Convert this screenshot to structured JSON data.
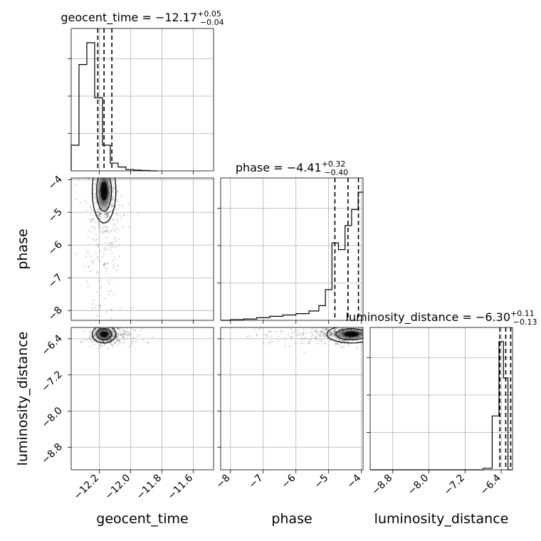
{
  "chart_data": {
    "type": "corner",
    "parameters": [
      {
        "name": "geocent_time",
        "axis_range": [
          -12.38,
          -11.47
        ],
        "ticks": [
          -12.2,
          -12.0,
          -11.8,
          -11.6
        ],
        "tick_labels": [
          "−12.2",
          "−12.0",
          "−11.8",
          "−11.6"
        ]
      },
      {
        "name": "phase",
        "axis_range": [
          -8.3,
          -3.95
        ],
        "ticks": [
          -8,
          -7,
          -6,
          -5,
          -4
        ],
        "tick_labels": [
          "−8",
          "−7",
          "−6",
          "−5",
          "−4"
        ]
      },
      {
        "name": "luminosity_distance",
        "axis_range": [
          -9.3,
          -6.15
        ],
        "ticks": [
          -8.8,
          -8.0,
          -7.2,
          -6.4
        ],
        "tick_labels": [
          "−8.8",
          "−8.0",
          "−7.2",
          "−6.4"
        ]
      }
    ],
    "titles": [
      {
        "parameter": "geocent_time",
        "median": "−12.17",
        "plus": "+0.05",
        "minus": "−0.04"
      },
      {
        "parameter": "phase",
        "median": "−4.41",
        "plus": "+0.32",
        "minus": "−0.40"
      },
      {
        "parameter": "luminosity_distance",
        "median": "−6.30",
        "plus": "+0.11",
        "minus": "−0.13"
      }
    ],
    "histograms": [
      {
        "parameter": "geocent_time",
        "bin_edges": [
          -12.38,
          -12.33,
          -12.28,
          -12.23,
          -12.18,
          -12.13,
          -12.08,
          -12.03,
          -11.98,
          -11.93,
          -11.88,
          -11.83
        ],
        "counts": [
          0.2,
          0.83,
          1.0,
          0.57,
          0.2,
          0.06,
          0.03,
          0.01,
          0.006,
          0.003,
          0.0
        ]
      },
      {
        "parameter": "phase",
        "bin_edges": [
          -8.3,
          -8.0,
          -7.6,
          -7.2,
          -6.8,
          -6.4,
          -6.0,
          -5.6,
          -5.3,
          -5.1,
          -4.9,
          -4.7,
          -4.5,
          -4.3,
          -4.1,
          -3.95
        ],
        "counts": [
          0.0,
          0.005,
          0.01,
          0.02,
          0.03,
          0.04,
          0.05,
          0.07,
          0.11,
          0.23,
          0.58,
          0.53,
          0.71,
          0.83,
          0.96
        ]
      },
      {
        "parameter": "luminosity_distance",
        "bin_edges": [
          -9.3,
          -6.8,
          -6.6,
          -6.45,
          -6.35,
          -6.25,
          -6.15
        ],
        "counts": [
          0.0,
          0.01,
          0.37,
          0.88,
          0.63,
          0.0
        ]
      }
    ],
    "quantile_lines": {
      "geocent_time": [
        -12.21,
        -12.17,
        -12.12
      ],
      "phase": [
        -4.81,
        -4.41,
        -4.09
      ],
      "luminosity_distance": [
        -6.43,
        -6.3,
        -6.19
      ]
    },
    "scatter_density": [
      {
        "x": "geocent_time",
        "y": "phase",
        "peak": [
          -12.17,
          -4.35
        ]
      },
      {
        "x": "geocent_time",
        "y": "luminosity_distance",
        "peak": [
          -12.17,
          -6.3
        ]
      },
      {
        "x": "phase",
        "y": "luminosity_distance",
        "peak": [
          -4.3,
          -6.3
        ]
      }
    ],
    "grid": true
  }
}
